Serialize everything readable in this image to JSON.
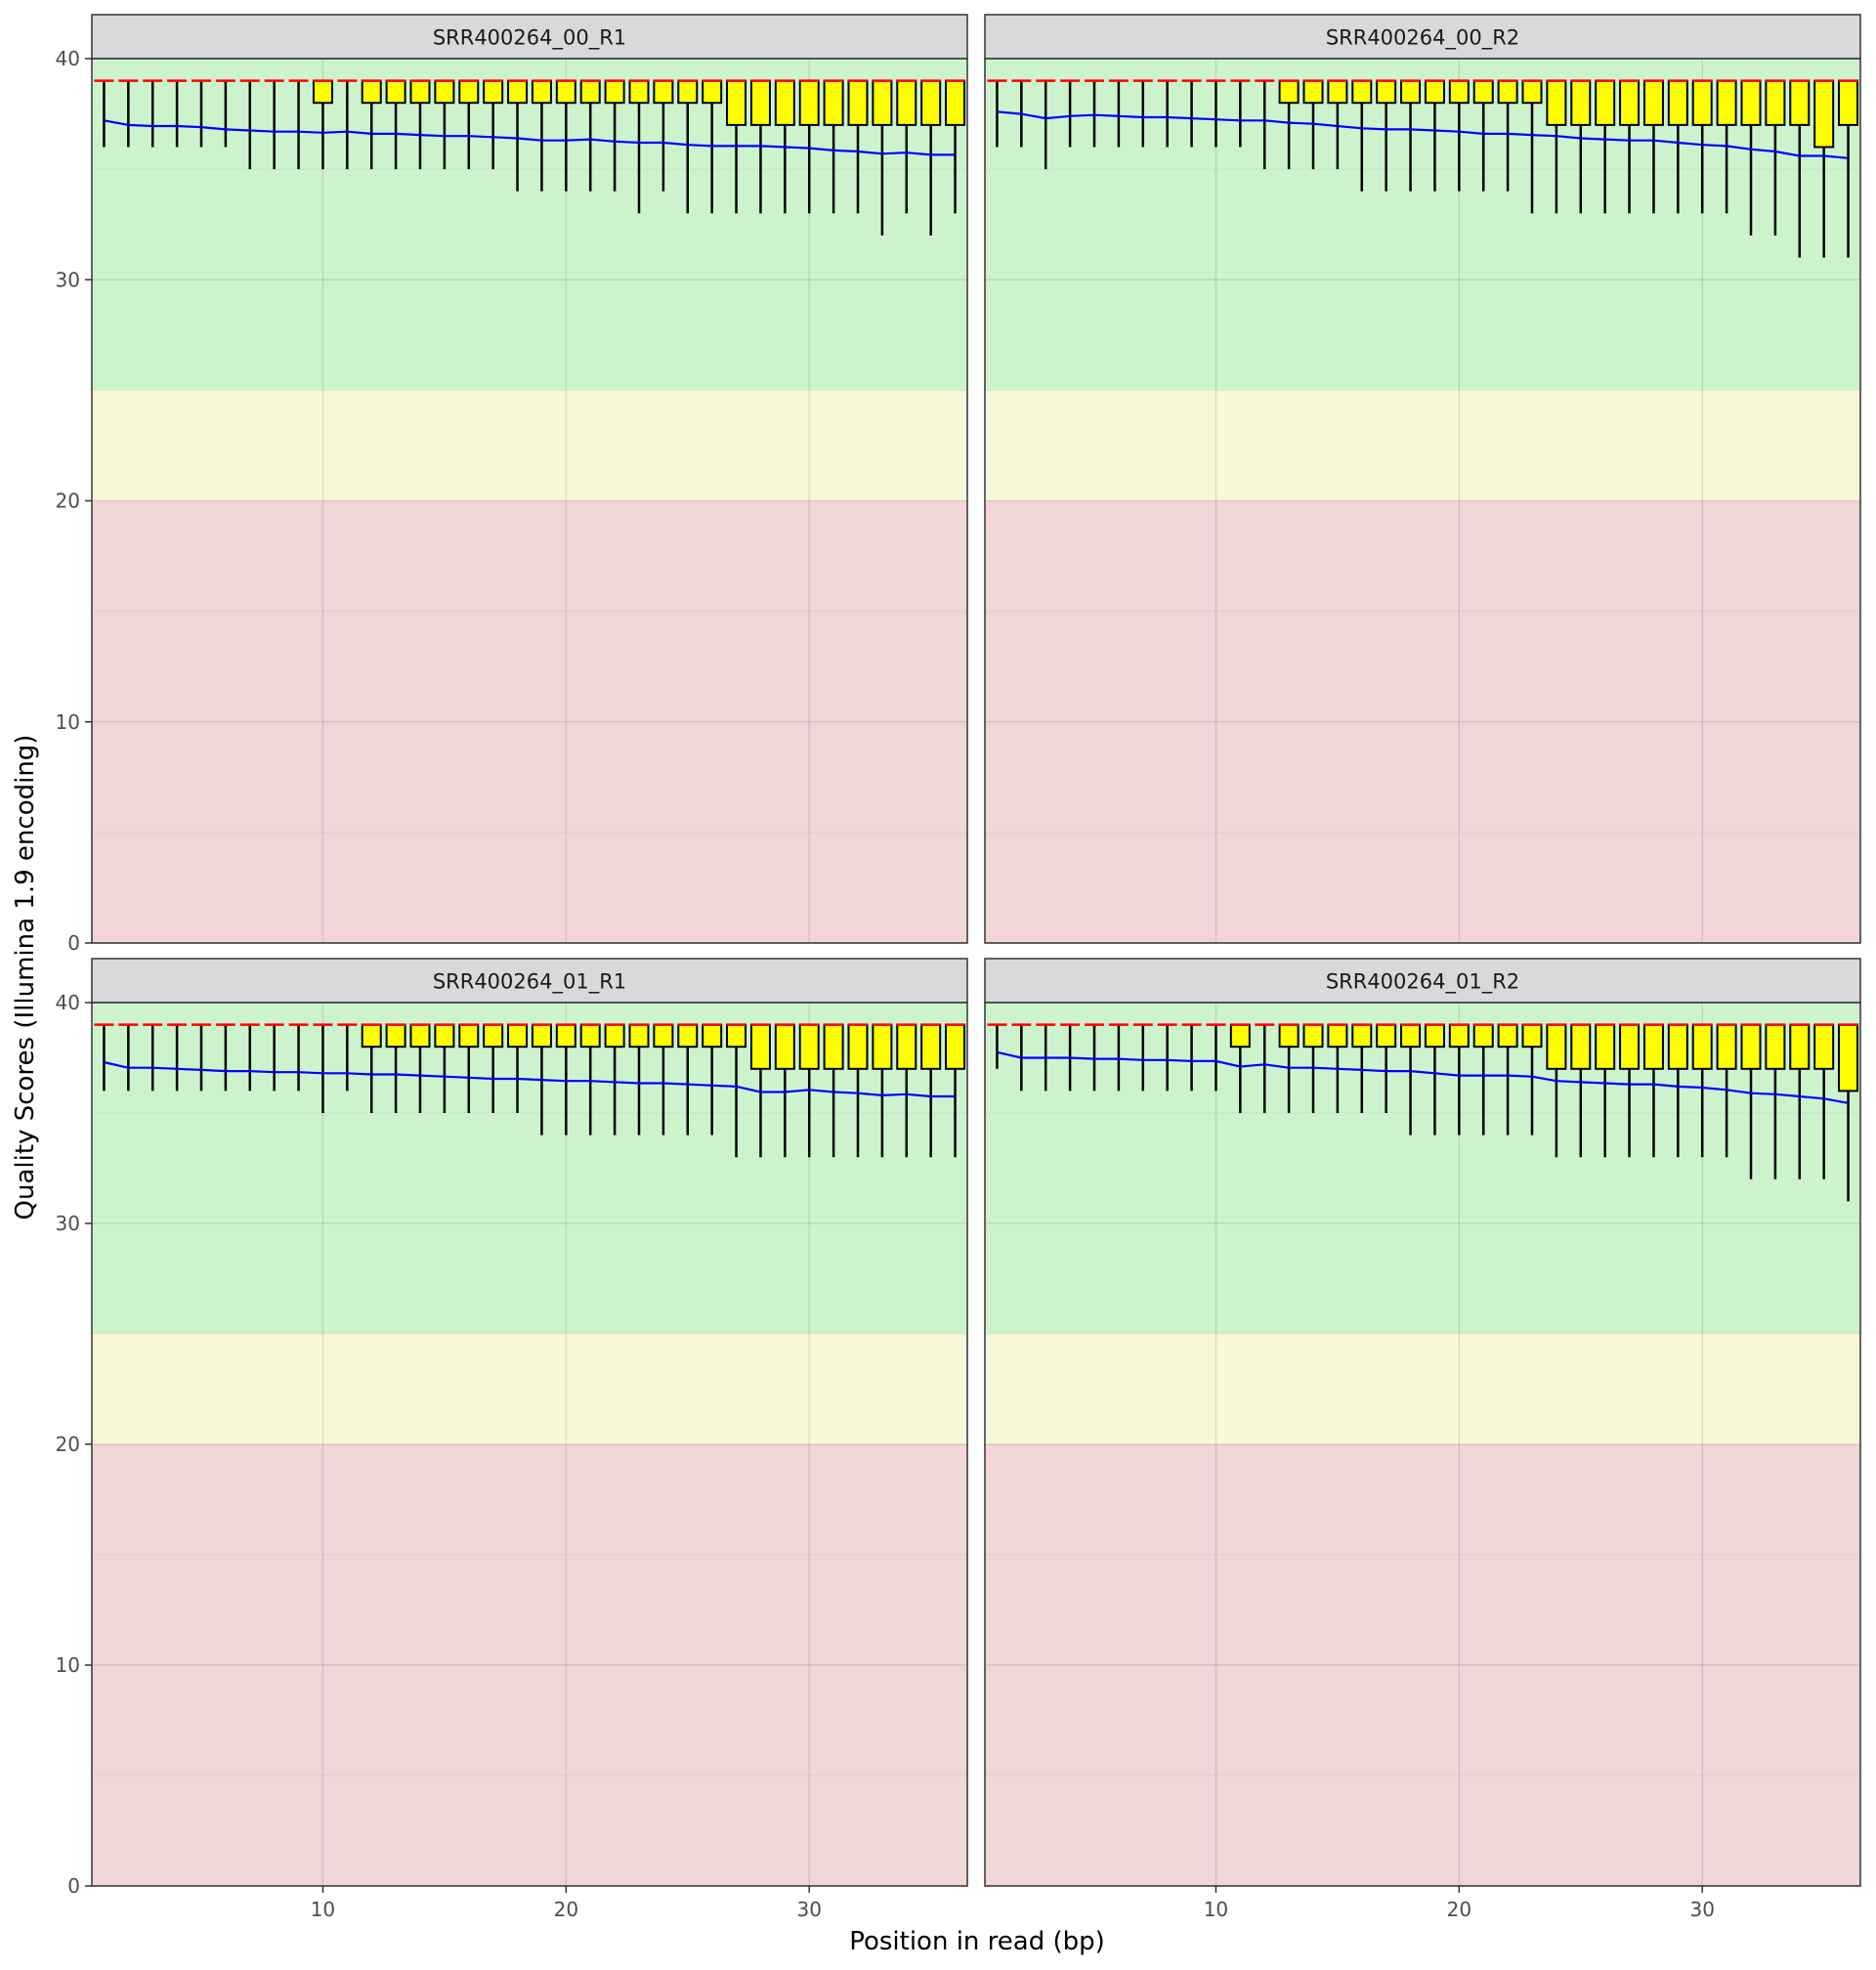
{
  "figure": {
    "xlabel": "Position in read (bp)",
    "ylabel": "Quality Scores (Illumina 1.9 encoding)"
  },
  "chart_data": {
    "type": "box",
    "xlim": [
      0.5,
      36.5
    ],
    "ylim": [
      0,
      40
    ],
    "x_ticks": [
      10,
      20,
      30
    ],
    "y_ticks": [
      0,
      10,
      20,
      30,
      40
    ],
    "grid": true,
    "quality_bands": [
      {
        "from": 0,
        "to": 20,
        "color": "#f2d5d7"
      },
      {
        "from": 20,
        "to": 25,
        "color": "#f8f8d8"
      },
      {
        "from": 25,
        "to": 40,
        "color": "#cdf3cd"
      }
    ],
    "colors": {
      "box_fill": "#ffff00",
      "median_line": "#ff0000",
      "mean_line": "#0000ff",
      "strip_bg": "#d9d9d9"
    },
    "panels": [
      {
        "title": "SRR400264_00_R1",
        "median": [
          39,
          39,
          39,
          39,
          39,
          39,
          39,
          39,
          39,
          39,
          39,
          39,
          39,
          39,
          39,
          39,
          39,
          39,
          39,
          39,
          39,
          39,
          39,
          39,
          39,
          39,
          39,
          39,
          39,
          39,
          39,
          39,
          39,
          39,
          39,
          39
        ],
        "q1": [
          39,
          39,
          39,
          39,
          39,
          39,
          39,
          39,
          39,
          38,
          39,
          38,
          38,
          38,
          38,
          38,
          38,
          38,
          38,
          38,
          38,
          38,
          38,
          38,
          38,
          38,
          37,
          37,
          37,
          37,
          37,
          37,
          37,
          37,
          37,
          37
        ],
        "q3": [
          39,
          39,
          39,
          39,
          39,
          39,
          39,
          39,
          39,
          39,
          39,
          39,
          39,
          39,
          39,
          39,
          39,
          39,
          39,
          39,
          39,
          39,
          39,
          39,
          39,
          39,
          39,
          39,
          39,
          39,
          39,
          39,
          39,
          39,
          39,
          39
        ],
        "whisker_low": [
          36,
          36,
          36,
          36,
          36,
          36,
          35,
          35,
          35,
          35,
          35,
          35,
          35,
          35,
          35,
          35,
          35,
          34,
          34,
          34,
          34,
          34,
          33,
          34,
          33,
          33,
          33,
          33,
          33,
          33,
          33,
          33,
          32,
          33,
          32,
          33
        ],
        "whisker_high": [
          39,
          39,
          39,
          39,
          39,
          39,
          39,
          39,
          39,
          39,
          39,
          39,
          39,
          39,
          39,
          39,
          39,
          39,
          39,
          39,
          39,
          39,
          39,
          39,
          39,
          39,
          39,
          39,
          39,
          39,
          39,
          39,
          39,
          39,
          39,
          39
        ],
        "mean": [
          37.2,
          37.0,
          36.95,
          36.95,
          36.9,
          36.8,
          36.75,
          36.7,
          36.7,
          36.65,
          36.7,
          36.6,
          36.6,
          36.55,
          36.5,
          36.5,
          36.45,
          36.4,
          36.3,
          36.3,
          36.35,
          36.25,
          36.2,
          36.2,
          36.1,
          36.05,
          36.05,
          36.05,
          36.0,
          35.95,
          35.85,
          35.8,
          35.7,
          35.75,
          35.65,
          35.65
        ]
      },
      {
        "title": "SRR400264_00_R2",
        "median": [
          39,
          39,
          39,
          39,
          39,
          39,
          39,
          39,
          39,
          39,
          39,
          39,
          39,
          39,
          39,
          39,
          39,
          39,
          39,
          39,
          39,
          39,
          39,
          39,
          39,
          39,
          39,
          39,
          39,
          39,
          39,
          39,
          39,
          39,
          39,
          39
        ],
        "q1": [
          39,
          39,
          39,
          39,
          39,
          39,
          39,
          39,
          39,
          39,
          39,
          39,
          38,
          38,
          38,
          38,
          38,
          38,
          38,
          38,
          38,
          38,
          38,
          37,
          37,
          37,
          37,
          37,
          37,
          37,
          37,
          37,
          37,
          37,
          36,
          37
        ],
        "q3": [
          39,
          39,
          39,
          39,
          39,
          39,
          39,
          39,
          39,
          39,
          39,
          39,
          39,
          39,
          39,
          39,
          39,
          39,
          39,
          39,
          39,
          39,
          39,
          39,
          39,
          39,
          39,
          39,
          39,
          39,
          39,
          39,
          39,
          39,
          39,
          39
        ],
        "whisker_low": [
          36,
          36,
          35,
          36,
          36,
          36,
          36,
          36,
          36,
          36,
          36,
          35,
          35,
          35,
          35,
          34,
          34,
          34,
          34,
          34,
          34,
          34,
          33,
          33,
          33,
          33,
          33,
          33,
          33,
          33,
          33,
          32,
          32,
          31,
          31,
          31
        ],
        "whisker_high": [
          39,
          39,
          39,
          39,
          39,
          39,
          39,
          39,
          39,
          39,
          39,
          39,
          39,
          39,
          39,
          39,
          39,
          39,
          39,
          39,
          39,
          39,
          39,
          39,
          39,
          39,
          39,
          39,
          39,
          39,
          39,
          39,
          39,
          39,
          39,
          39
        ],
        "mean": [
          37.6,
          37.5,
          37.3,
          37.4,
          37.45,
          37.4,
          37.35,
          37.35,
          37.3,
          37.25,
          37.2,
          37.2,
          37.1,
          37.05,
          36.95,
          36.85,
          36.8,
          36.8,
          36.75,
          36.7,
          36.6,
          36.6,
          36.55,
          36.5,
          36.4,
          36.35,
          36.3,
          36.3,
          36.2,
          36.1,
          36.05,
          35.9,
          35.8,
          35.6,
          35.6,
          35.5
        ]
      },
      {
        "title": "SRR400264_01_R1",
        "median": [
          39,
          39,
          39,
          39,
          39,
          39,
          39,
          39,
          39,
          39,
          39,
          39,
          39,
          39,
          39,
          39,
          39,
          39,
          39,
          39,
          39,
          39,
          39,
          39,
          39,
          39,
          39,
          39,
          39,
          39,
          39,
          39,
          39,
          39,
          39,
          39
        ],
        "q1": [
          39,
          39,
          39,
          39,
          39,
          39,
          39,
          39,
          39,
          39,
          39,
          38,
          38,
          38,
          38,
          38,
          38,
          38,
          38,
          38,
          38,
          38,
          38,
          38,
          38,
          38,
          38,
          37,
          37,
          37,
          37,
          37,
          37,
          37,
          37,
          37
        ],
        "q3": [
          39,
          39,
          39,
          39,
          39,
          39,
          39,
          39,
          39,
          39,
          39,
          39,
          39,
          39,
          39,
          39,
          39,
          39,
          39,
          39,
          39,
          39,
          39,
          39,
          39,
          39,
          39,
          39,
          39,
          39,
          39,
          39,
          39,
          39,
          39,
          39
        ],
        "whisker_low": [
          36,
          36,
          36,
          36,
          36,
          36,
          36,
          36,
          36,
          35,
          36,
          35,
          35,
          35,
          35,
          35,
          35,
          35,
          34,
          34,
          34,
          34,
          34,
          34,
          34,
          34,
          33,
          33,
          33,
          33,
          33,
          33,
          33,
          33,
          33,
          33
        ],
        "whisker_high": [
          39,
          39,
          39,
          39,
          39,
          39,
          39,
          39,
          39,
          39,
          39,
          39,
          39,
          39,
          39,
          39,
          39,
          39,
          39,
          39,
          39,
          39,
          39,
          39,
          39,
          39,
          39,
          39,
          39,
          39,
          39,
          39,
          39,
          39,
          39,
          39
        ],
        "mean": [
          37.3,
          37.05,
          37.05,
          37.0,
          36.95,
          36.9,
          36.9,
          36.85,
          36.85,
          36.8,
          36.8,
          36.75,
          36.75,
          36.7,
          36.65,
          36.6,
          36.55,
          36.55,
          36.5,
          36.45,
          36.45,
          36.4,
          36.35,
          36.35,
          36.3,
          36.25,
          36.2,
          35.95,
          35.95,
          36.05,
          35.95,
          35.9,
          35.8,
          35.85,
          35.75,
          35.75
        ]
      },
      {
        "title": "SRR400264_01_R2",
        "median": [
          39,
          39,
          39,
          39,
          39,
          39,
          39,
          39,
          39,
          39,
          39,
          39,
          39,
          39,
          39,
          39,
          39,
          39,
          39,
          39,
          39,
          39,
          39,
          39,
          39,
          39,
          39,
          39,
          39,
          39,
          39,
          39,
          39,
          39,
          39,
          39
        ],
        "q1": [
          39,
          39,
          39,
          39,
          39,
          39,
          39,
          39,
          39,
          39,
          38,
          39,
          38,
          38,
          38,
          38,
          38,
          38,
          38,
          38,
          38,
          38,
          38,
          37,
          37,
          37,
          37,
          37,
          37,
          37,
          37,
          37,
          37,
          37,
          37,
          36
        ],
        "q3": [
          39,
          39,
          39,
          39,
          39,
          39,
          39,
          39,
          39,
          39,
          39,
          39,
          39,
          39,
          39,
          39,
          39,
          39,
          39,
          39,
          39,
          39,
          39,
          39,
          39,
          39,
          39,
          39,
          39,
          39,
          39,
          39,
          39,
          39,
          39,
          39
        ],
        "whisker_low": [
          37,
          36,
          36,
          36,
          36,
          36,
          36,
          36,
          36,
          36,
          35,
          35,
          35,
          35,
          35,
          35,
          35,
          34,
          34,
          34,
          34,
          34,
          34,
          33,
          33,
          33,
          33,
          33,
          33,
          33,
          33,
          32,
          32,
          32,
          32,
          31
        ],
        "whisker_high": [
          39,
          39,
          39,
          39,
          39,
          39,
          39,
          39,
          39,
          39,
          39,
          39,
          39,
          39,
          39,
          39,
          39,
          39,
          39,
          39,
          39,
          39,
          39,
          39,
          39,
          39,
          39,
          39,
          39,
          39,
          39,
          39,
          39,
          39,
          39,
          39
        ],
        "mean": [
          37.75,
          37.5,
          37.5,
          37.5,
          37.45,
          37.45,
          37.4,
          37.4,
          37.35,
          37.35,
          37.1,
          37.2,
          37.05,
          37.05,
          37.0,
          36.95,
          36.9,
          36.9,
          36.8,
          36.7,
          36.7,
          36.7,
          36.65,
          36.45,
          36.4,
          36.35,
          36.3,
          36.3,
          36.2,
          36.15,
          36.05,
          35.9,
          35.85,
          35.75,
          35.65,
          35.45
        ]
      }
    ]
  }
}
